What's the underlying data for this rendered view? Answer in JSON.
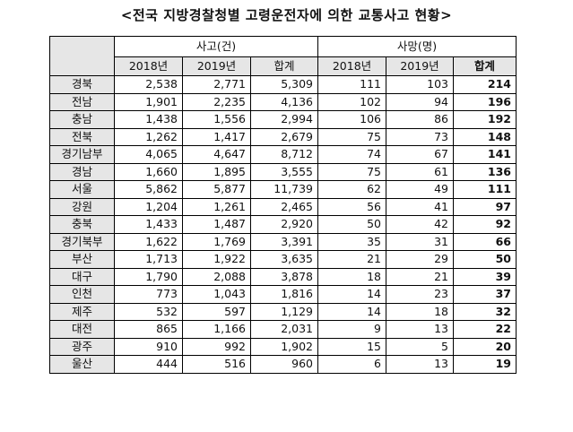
{
  "title": "<전국 지방경찰청별 고령운전자에 의한 교통사고 현황>",
  "groups": {
    "accidents": "사고(건)",
    "deaths": "사망(명)"
  },
  "subheaders": [
    "2018년",
    "2019년",
    "합계",
    "2018년",
    "2019년",
    "합계"
  ],
  "rows": [
    {
      "region": "경북",
      "a2018": "2,538",
      "a2019": "2,771",
      "atotal": "5,309",
      "d2018": "111",
      "d2019": "103",
      "dtotal": "214"
    },
    {
      "region": "전남",
      "a2018": "1,901",
      "a2019": "2,235",
      "atotal": "4,136",
      "d2018": "102",
      "d2019": "94",
      "dtotal": "196"
    },
    {
      "region": "충남",
      "a2018": "1,438",
      "a2019": "1,556",
      "atotal": "2,994",
      "d2018": "106",
      "d2019": "86",
      "dtotal": "192"
    },
    {
      "region": "전북",
      "a2018": "1,262",
      "a2019": "1,417",
      "atotal": "2,679",
      "d2018": "75",
      "d2019": "73",
      "dtotal": "148"
    },
    {
      "region": "경기남부",
      "a2018": "4,065",
      "a2019": "4,647",
      "atotal": "8,712",
      "d2018": "74",
      "d2019": "67",
      "dtotal": "141"
    },
    {
      "region": "경남",
      "a2018": "1,660",
      "a2019": "1,895",
      "atotal": "3,555",
      "d2018": "75",
      "d2019": "61",
      "dtotal": "136"
    },
    {
      "region": "서울",
      "a2018": "5,862",
      "a2019": "5,877",
      "atotal": "11,739",
      "d2018": "62",
      "d2019": "49",
      "dtotal": "111"
    },
    {
      "region": "강원",
      "a2018": "1,204",
      "a2019": "1,261",
      "atotal": "2,465",
      "d2018": "56",
      "d2019": "41",
      "dtotal": "97"
    },
    {
      "region": "충북",
      "a2018": "1,433",
      "a2019": "1,487",
      "atotal": "2,920",
      "d2018": "50",
      "d2019": "42",
      "dtotal": "92"
    },
    {
      "region": "경기북부",
      "a2018": "1,622",
      "a2019": "1,769",
      "atotal": "3,391",
      "d2018": "35",
      "d2019": "31",
      "dtotal": "66"
    },
    {
      "region": "부산",
      "a2018": "1,713",
      "a2019": "1,922",
      "atotal": "3,635",
      "d2018": "21",
      "d2019": "29",
      "dtotal": "50"
    },
    {
      "region": "대구",
      "a2018": "1,790",
      "a2019": "2,088",
      "atotal": "3,878",
      "d2018": "18",
      "d2019": "21",
      "dtotal": "39"
    },
    {
      "region": "인천",
      "a2018": "773",
      "a2019": "1,043",
      "atotal": "1,816",
      "d2018": "14",
      "d2019": "23",
      "dtotal": "37"
    },
    {
      "region": "제주",
      "a2018": "532",
      "a2019": "597",
      "atotal": "1,129",
      "d2018": "14",
      "d2019": "18",
      "dtotal": "32"
    },
    {
      "region": "대전",
      "a2018": "865",
      "a2019": "1,166",
      "atotal": "2,031",
      "d2018": "9",
      "d2019": "13",
      "dtotal": "22"
    },
    {
      "region": "광주",
      "a2018": "910",
      "a2019": "992",
      "atotal": "1,902",
      "d2018": "15",
      "d2019": "5",
      "dtotal": "20"
    },
    {
      "region": "울산",
      "a2018": "444",
      "a2019": "516",
      "atotal": "960",
      "d2018": "6",
      "d2019": "13",
      "dtotal": "19"
    }
  ],
  "colors": {
    "header_fill": "#e6e6e6",
    "border": "#000000",
    "text": "#111111"
  }
}
